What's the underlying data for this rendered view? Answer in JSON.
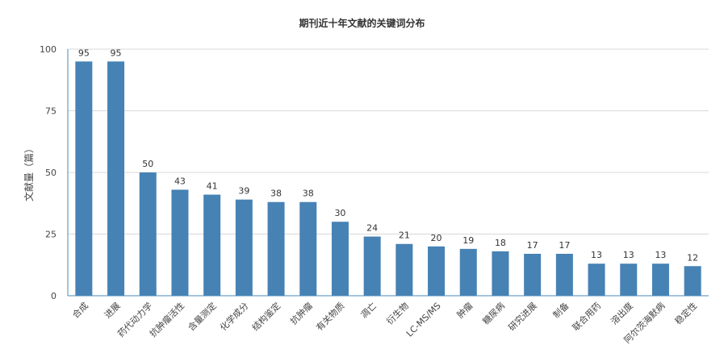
{
  "chart_data": {
    "type": "bar",
    "title": "期刊近十年文献的关键词分布",
    "xlabel": "",
    "ylabel": "文献量（篇）",
    "ylim": [
      0,
      100
    ],
    "yticks": [
      0,
      25,
      50,
      75,
      100
    ],
    "grid": true,
    "legend": "none",
    "colors": {
      "bar": "#4682b4",
      "grid": "#d9d9d9",
      "axis": "#4a8ab8"
    },
    "categories": [
      "合成",
      "进展",
      "药代动力学",
      "抗肿瘤活性",
      "含量测定",
      "化学成分",
      "结构鉴定",
      "抗肿瘤",
      "有关物质",
      "凋亡",
      "衍生物",
      "LC-MS/MS",
      "肿瘤",
      "糖尿病",
      "研究进展",
      "制备",
      "联合用药",
      "溶出度",
      "阿尔茨海默病",
      "稳定性"
    ],
    "values": [
      95,
      95,
      50,
      43,
      41,
      39,
      38,
      38,
      30,
      24,
      21,
      20,
      19,
      18,
      17,
      17,
      13,
      13,
      13,
      12
    ]
  }
}
